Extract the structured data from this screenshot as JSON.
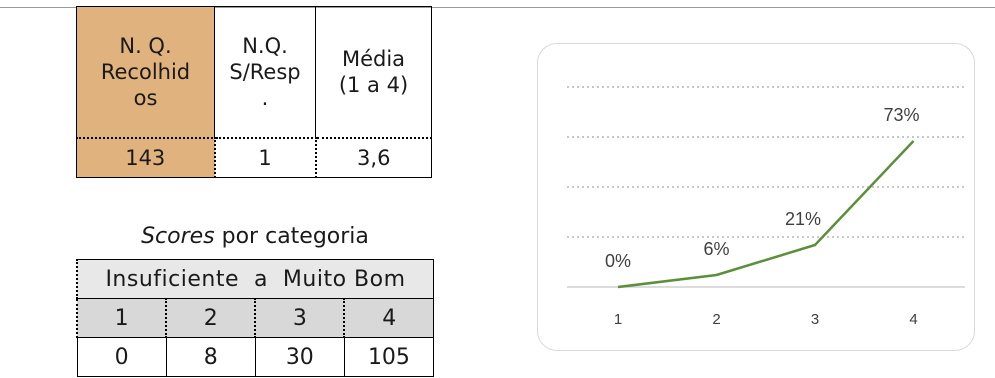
{
  "summary": {
    "headers": [
      "N. Q. Recolhidos",
      "N.Q. S/Resp.",
      "Média (1 a 4)"
    ],
    "header_lines": [
      [
        "N. Q.",
        "Recolhid",
        "os"
      ],
      [
        "N.Q.",
        "S/Resp",
        "."
      ],
      [
        "Média",
        "(1 a 4)"
      ]
    ],
    "values": [
      "143",
      "1",
      "3,6"
    ],
    "accent_color": "#e0b27e"
  },
  "scores": {
    "title_italic": "Scores",
    "title_rest": " por categoria",
    "range_label": "Insuficiente  a  Muito Bom",
    "categories": [
      "1",
      "2",
      "3",
      "4"
    ],
    "counts": [
      "0",
      "8",
      "30",
      "105"
    ]
  },
  "chart_data": {
    "type": "line",
    "categories": [
      "1",
      "2",
      "3",
      "4"
    ],
    "series": [
      {
        "values": [
          0,
          6,
          21,
          73
        ],
        "color": "#5b8f3a"
      }
    ],
    "data_labels": [
      "0%",
      "6%",
      "21%",
      "73%"
    ],
    "ylim": [
      0,
      100
    ],
    "grid": true,
    "legend": "none"
  }
}
